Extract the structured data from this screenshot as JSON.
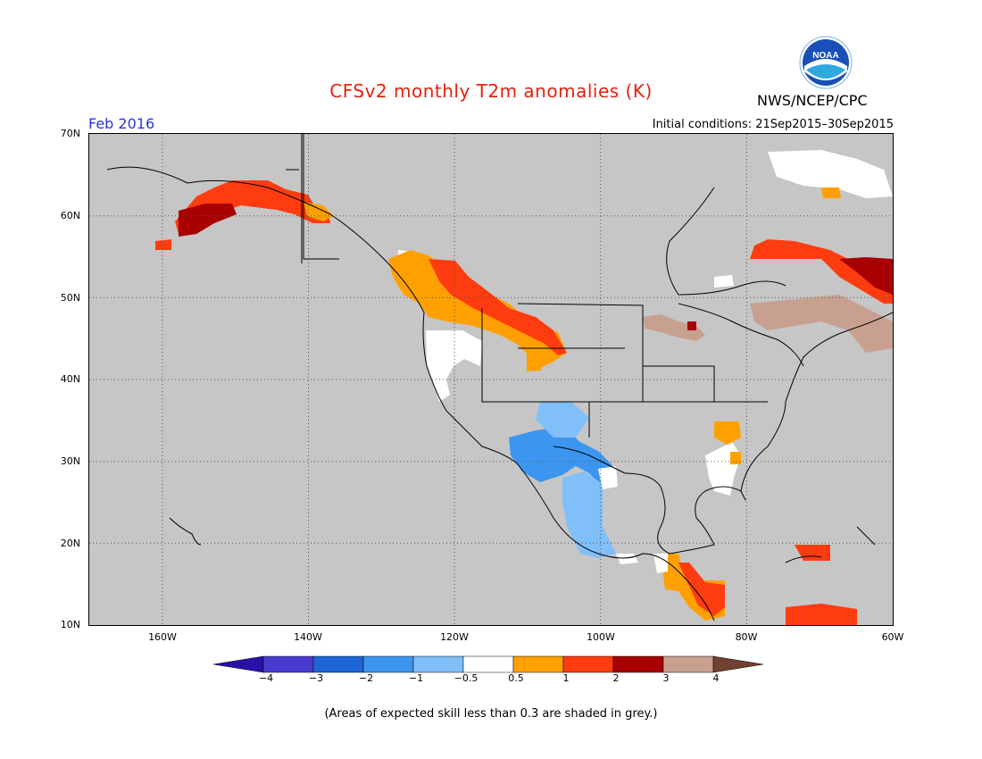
{
  "title": "CFSv2 monthly T2m anomalies (K)",
  "agency": "NWS/NCEP/CPC",
  "logo_text": "NOAA",
  "month_label": "Feb 2016",
  "initial_conditions": "Initial conditions: 21Sep2015–30Sep2015",
  "note": "(Areas of expected skill less than 0.3 are shaded in grey.)",
  "map": {
    "lat_labels": [
      "70N",
      "60N",
      "50N",
      "40N",
      "30N",
      "20N",
      "10N"
    ],
    "lon_labels": [
      "160W",
      "140W",
      "120W",
      "100W",
      "80W",
      "60W"
    ],
    "lat_range": [
      10,
      70
    ],
    "lon_range": [
      -170,
      -60
    ],
    "grey_color": "#c6c6c6"
  },
  "colorbar": {
    "labels": [
      "−4",
      "−3",
      "−2",
      "−1",
      "−0.5",
      "0.5",
      "1",
      "2",
      "3",
      "4"
    ],
    "colors": [
      "#2a10a8",
      "#4a3cd0",
      "#1e66d8",
      "#3c96f0",
      "#80bff8",
      "#ffffff",
      "#ffa000",
      "#ff3c10",
      "#a80000",
      "#c8a090",
      "#704030"
    ]
  }
}
